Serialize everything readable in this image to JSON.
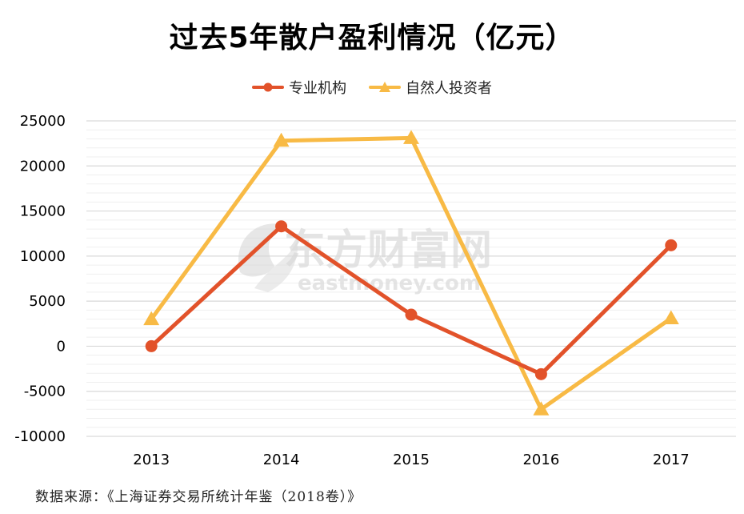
{
  "chart_data": {
    "type": "line",
    "title": "过去5年散户盈利情况（亿元）",
    "categories": [
      "2013",
      "2014",
      "2015",
      "2016",
      "2017"
    ],
    "series": [
      {
        "name": "专业机构",
        "color": "#E2522A",
        "marker": "circle",
        "values": [
          0,
          13300,
          3500,
          -3100,
          11200
        ]
      },
      {
        "name": "自然人投资者",
        "color": "#F8BA45",
        "marker": "triangle",
        "values": [
          3000,
          22800,
          23100,
          -7000,
          3100
        ]
      }
    ],
    "ylim": [
      -10000,
      25000
    ],
    "yticks": [
      "25000",
      "20000",
      "15000",
      "10000",
      "5000",
      "0",
      "-5000",
      "-10000"
    ],
    "xlabel": "",
    "ylabel": "",
    "grid": true,
    "legend_position": "top"
  },
  "watermark": {
    "brand": "东方财富网",
    "domain": "eastmoney.com"
  },
  "footer": {
    "source": "数据来源：《上海证券交易所统计年鉴（2018卷）》"
  }
}
